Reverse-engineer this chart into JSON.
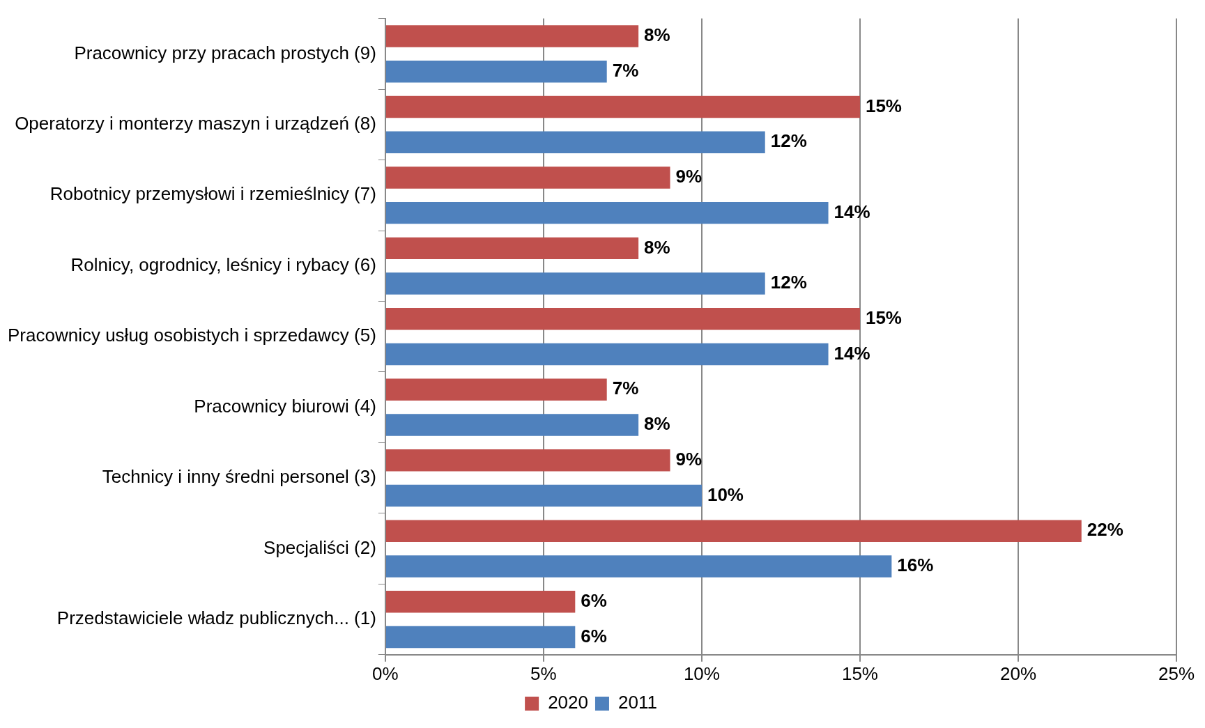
{
  "chart_data": {
    "type": "bar",
    "orientation": "horizontal",
    "categories": [
      "Pracownicy przy pracach prostych (9)",
      "Operatorzy i monterzy maszyn i urządzeń (8)",
      "Robotnicy przemysłowi i rzemieślnicy (7)",
      "Rolnicy, ogrodnicy, leśnicy i rybacy (6)",
      "Pracownicy usług osobistych i sprzedawcy (5)",
      "Pracownicy biurowi (4)",
      "Technicy i inny średni personel (3)",
      "Specjaliści (2)",
      "Przedstawiciele władz publicznych... (1)"
    ],
    "series": [
      {
        "name": "2020",
        "color": "#c0504d",
        "values": [
          8,
          15,
          9,
          8,
          15,
          7,
          9,
          22,
          6
        ],
        "value_labels": [
          "8%",
          "15%",
          "9%",
          "8%",
          "15%",
          "7%",
          "9%",
          "22%",
          "6%"
        ]
      },
      {
        "name": "2011",
        "color": "#4f81bd",
        "values": [
          7,
          12,
          14,
          12,
          14,
          8,
          10,
          16,
          6
        ],
        "value_labels": [
          "7%",
          "12%",
          "14%",
          "12%",
          "14%",
          "8%",
          "10%",
          "16%",
          "6%"
        ]
      }
    ],
    "xlim": [
      0,
      25
    ],
    "xticks": [
      {
        "value": 0,
        "label": "0%"
      },
      {
        "value": 5,
        "label": "5%"
      },
      {
        "value": 10,
        "label": "10%"
      },
      {
        "value": 15,
        "label": "15%"
      },
      {
        "value": 20,
        "label": "20%"
      },
      {
        "value": 25,
        "label": "25%"
      }
    ],
    "grid": "x",
    "legend": "bottom"
  }
}
